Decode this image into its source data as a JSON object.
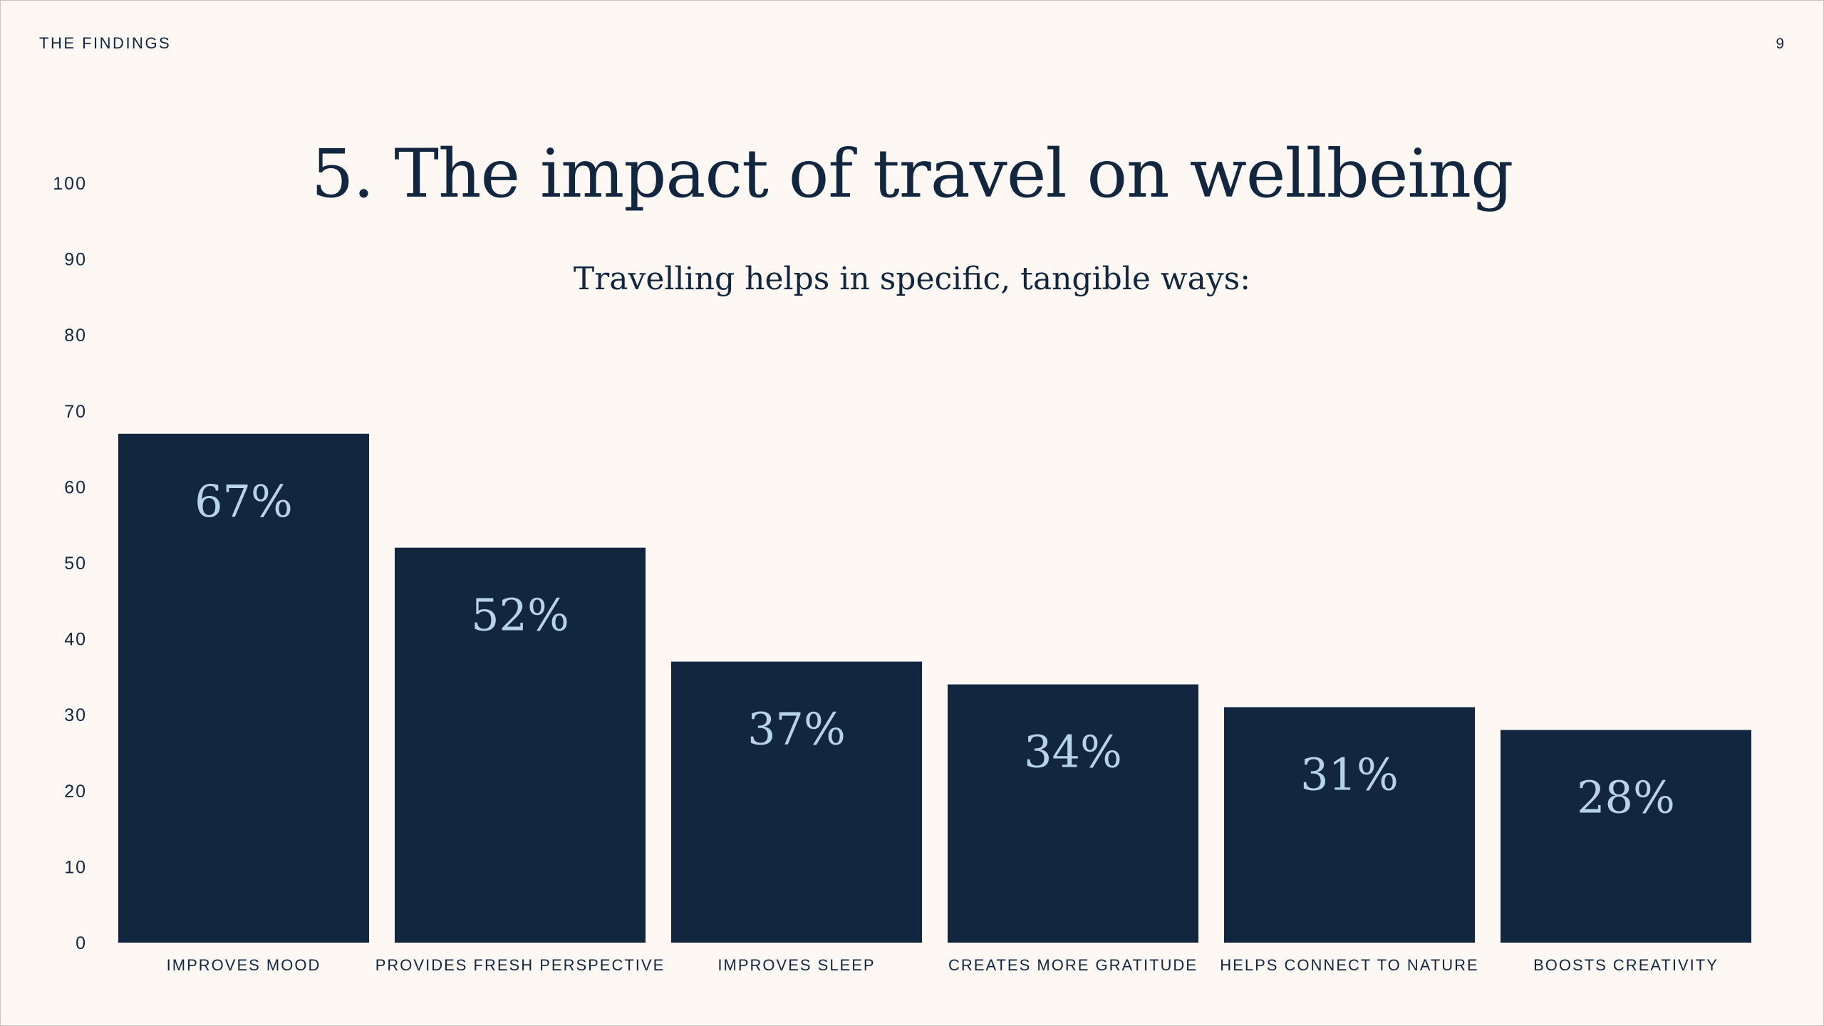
{
  "header": {
    "section_label": "THE FINDINGS",
    "page_number": "9"
  },
  "chart_data": {
    "type": "bar",
    "title": "5. The impact of travel on wellbeing",
    "subtitle": "Travelling helps in specific, tangible ways:",
    "categories": [
      "IMPROVES MOOD",
      "PROVIDES FRESH PERSPECTIVE",
      "IMPROVES SLEEP",
      "CREATES MORE GRATITUDE",
      "HELPS CONNECT TO NATURE",
      "BOOSTS CREATIVITY"
    ],
    "values": [
      67,
      52,
      37,
      34,
      31,
      28
    ],
    "data_labels": [
      "67%",
      "52%",
      "37%",
      "34%",
      "31%",
      "28%"
    ],
    "ylim": [
      0,
      100
    ],
    "yticks": [
      0,
      10,
      20,
      30,
      40,
      50,
      60,
      70,
      80,
      90,
      100
    ],
    "grid": false,
    "legend": "none",
    "bar_color": "#12263f",
    "label_color": "#b6d3ea"
  }
}
